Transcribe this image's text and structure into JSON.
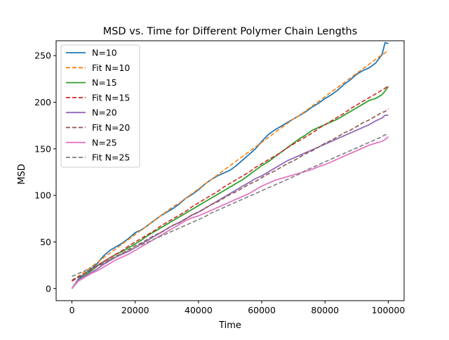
{
  "chart_data": {
    "type": "line",
    "title": "MSD vs. Time for Different Polymer Chain Lengths",
    "xlabel": "Time",
    "ylabel": "MSD",
    "xlim": [
      -5000,
      105000
    ],
    "ylim": [
      -13,
      266
    ],
    "xticks": [
      0,
      20000,
      40000,
      60000,
      80000,
      100000
    ],
    "yticks": [
      0,
      50,
      100,
      150,
      200,
      250
    ],
    "grid": false,
    "legend_position": "top-left",
    "x": [
      0,
      2000,
      4000,
      6000,
      8000,
      10000,
      12000,
      14000,
      16000,
      18000,
      20000,
      22000,
      24000,
      26000,
      28000,
      30000,
      32000,
      34000,
      36000,
      38000,
      40000,
      42000,
      44000,
      46000,
      48000,
      50000,
      52000,
      54000,
      56000,
      58000,
      60000,
      62000,
      64000,
      66000,
      68000,
      70000,
      72000,
      74000,
      76000,
      78000,
      80000,
      82000,
      84000,
      86000,
      88000,
      90000,
      92000,
      94000,
      96000,
      98000,
      99000,
      100000
    ],
    "series": [
      {
        "name": "N=10",
        "color": "#1f77b4",
        "dash": false,
        "values": [
          0,
          10,
          16,
          21,
          27,
          35,
          41,
          45,
          49,
          54,
          60,
          63,
          68,
          73,
          78,
          82,
          86,
          91,
          97,
          101,
          106,
          112,
          117,
          121,
          124,
          127,
          132,
          138,
          144,
          150,
          158,
          165,
          170,
          174,
          178,
          182,
          186,
          190,
          195,
          199,
          204,
          208,
          213,
          219,
          224,
          230,
          234,
          237,
          242,
          251,
          264,
          263
        ]
      },
      {
        "name": "Fit N=10",
        "color": "#ff7f0e",
        "dash": true,
        "values": [
          8,
          13,
          18,
          23,
          28,
          33,
          38,
          43,
          48,
          53,
          58,
          63,
          68,
          73,
          78,
          83,
          88,
          92,
          97,
          102,
          107,
          112,
          117,
          122,
          127,
          132,
          137,
          142,
          147,
          152,
          157,
          162,
          167,
          172,
          177,
          182,
          186,
          191,
          196,
          201,
          206,
          211,
          216,
          221,
          226,
          231,
          236,
          241,
          246,
          251,
          253,
          256
        ]
      },
      {
        "name": "N=15",
        "color": "#2ca02c",
        "dash": false,
        "values": [
          0,
          9,
          14,
          19,
          24,
          29,
          33,
          37,
          40,
          44,
          48,
          52,
          57,
          61,
          65,
          69,
          73,
          77,
          81,
          85,
          89,
          93,
          97,
          101,
          105,
          109,
          113,
          117,
          122,
          127,
          132,
          136,
          141,
          146,
          151,
          156,
          161,
          165,
          170,
          173,
          176,
          179,
          182,
          186,
          190,
          194,
          198,
          202,
          204,
          208,
          212,
          217
        ]
      },
      {
        "name": "Fit N=15",
        "color": "#d62728",
        "dash": true,
        "values": [
          8,
          12,
          16,
          20,
          25,
          29,
          33,
          37,
          41,
          46,
          50,
          54,
          58,
          62,
          67,
          71,
          75,
          79,
          83,
          88,
          92,
          96,
          100,
          104,
          109,
          113,
          117,
          121,
          125,
          130,
          134,
          138,
          142,
          146,
          151,
          155,
          159,
          163,
          167,
          172,
          176,
          180,
          184,
          188,
          193,
          197,
          201,
          205,
          209,
          213,
          215,
          218
        ]
      },
      {
        "name": "N=20",
        "color": "#9467bd",
        "dash": false,
        "values": [
          0,
          9,
          13,
          17,
          21,
          26,
          30,
          34,
          37,
          40,
          44,
          48,
          52,
          56,
          60,
          64,
          68,
          71,
          75,
          79,
          82,
          86,
          90,
          94,
          98,
          102,
          106,
          110,
          114,
          118,
          121,
          125,
          129,
          133,
          137,
          140,
          143,
          146,
          149,
          152,
          155,
          158,
          161,
          164,
          167,
          170,
          173,
          176,
          180,
          183,
          186,
          186
        ]
      },
      {
        "name": "Fit N=20",
        "color": "#8c564b",
        "dash": true,
        "values": [
          9,
          13,
          16,
          20,
          24,
          27,
          31,
          35,
          38,
          42,
          46,
          49,
          53,
          57,
          60,
          64,
          68,
          71,
          75,
          79,
          82,
          86,
          90,
          93,
          97,
          101,
          104,
          108,
          112,
          115,
          119,
          123,
          126,
          130,
          134,
          137,
          141,
          145,
          148,
          152,
          156,
          159,
          163,
          167,
          170,
          174,
          178,
          181,
          185,
          189,
          190,
          193
        ]
      },
      {
        "name": "N=25",
        "color": "#e377c2",
        "dash": false,
        "values": [
          0,
          8,
          12,
          16,
          19,
          23,
          27,
          31,
          34,
          37,
          41,
          45,
          49,
          53,
          57,
          61,
          65,
          69,
          73,
          76,
          78,
          81,
          84,
          87,
          90,
          93,
          96,
          99,
          102,
          106,
          110,
          113,
          116,
          118,
          120,
          122,
          124,
          126,
          128,
          131,
          133,
          136,
          139,
          142,
          145,
          148,
          151,
          154,
          156,
          158,
          160,
          163
        ]
      },
      {
        "name": "Fit N=25",
        "color": "#7f7f7f",
        "dash": true,
        "values": [
          13,
          16,
          19,
          22,
          25,
          28,
          31,
          34,
          38,
          41,
          44,
          47,
          50,
          53,
          56,
          59,
          62,
          65,
          68,
          71,
          74,
          77,
          81,
          84,
          87,
          90,
          93,
          96,
          99,
          102,
          105,
          108,
          111,
          114,
          117,
          120,
          123,
          127,
          130,
          133,
          136,
          139,
          142,
          145,
          148,
          151,
          154,
          157,
          160,
          163,
          165,
          166
        ]
      }
    ]
  }
}
